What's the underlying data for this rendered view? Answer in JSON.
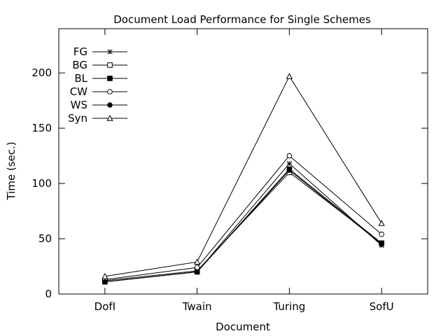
{
  "chart_data": {
    "type": "line",
    "title": "Document Load Performance for Single Schemes",
    "xlabel": "Document",
    "ylabel": "Time (sec.)",
    "categories": [
      "DofI",
      "Twain",
      "Turing",
      "SofU"
    ],
    "ylim": [
      0,
      240
    ],
    "yticks": [
      0,
      50,
      100,
      150,
      200
    ],
    "grid": false,
    "legend_position": "top-left",
    "series": [
      {
        "name": "FG",
        "marker": "star",
        "values": [
          11,
          20,
          118,
          44
        ]
      },
      {
        "name": "BG",
        "marker": "open-square",
        "values": [
          12,
          21,
          110,
          46
        ]
      },
      {
        "name": "BL",
        "marker": "filled-square",
        "values": [
          11,
          20,
          113,
          46
        ]
      },
      {
        "name": "CW",
        "marker": "open-circle",
        "values": [
          13,
          24,
          125,
          54
        ]
      },
      {
        "name": "WS",
        "marker": "filled-circle",
        "values": [
          11,
          20,
          112,
          45
        ]
      },
      {
        "name": "Syn",
        "marker": "open-triangle",
        "values": [
          16,
          29,
          197,
          64
        ]
      }
    ]
  }
}
